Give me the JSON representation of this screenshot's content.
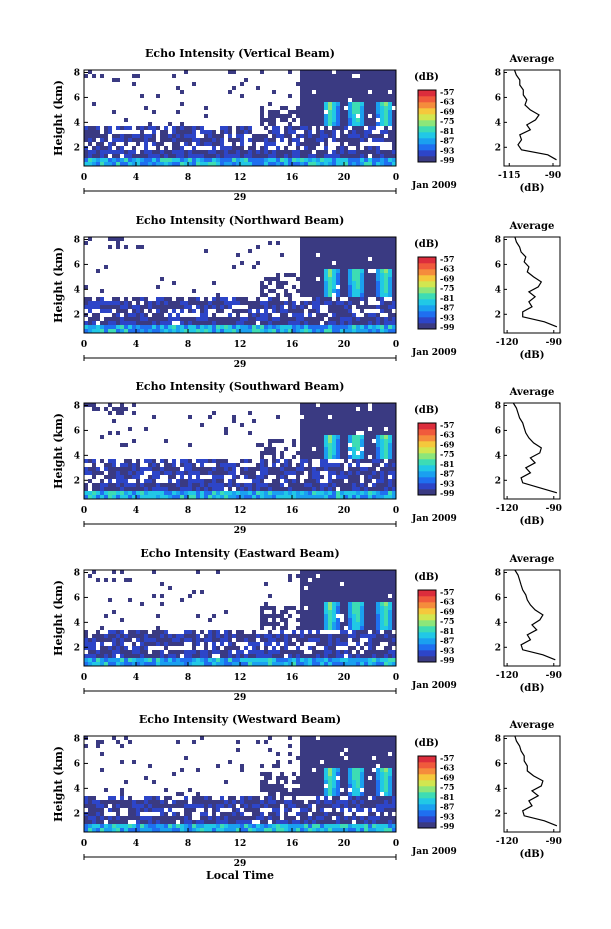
{
  "figure": {
    "x_axis_title": "Local Time",
    "date_label": "29",
    "month_year_label": "Jan 2009",
    "colorbar_unit": "(dB)",
    "average_title": "Average",
    "average_xlabel": "(dB)"
  },
  "colorbar": {
    "tick_labels": [
      "-57",
      "-63",
      "-69",
      "-75",
      "-81",
      "-87",
      "-93",
      "-99"
    ],
    "range": [
      -99,
      -57
    ],
    "colors": [
      "#3a3a82",
      "#2d45c8",
      "#1f6ff0",
      "#1aa0f0",
      "#21c8e6",
      "#3ddcb4",
      "#8ce67a",
      "#d2e650",
      "#f5c83c",
      "#f58c3c",
      "#f05a3c",
      "#dc2d3c"
    ]
  },
  "chart_data": [
    {
      "type": "heatmap",
      "title": "Echo Intensity (Vertical Beam)",
      "ylabel": "Height (km)",
      "x_ticks": [
        "0",
        "4",
        "8",
        "12",
        "16",
        "20",
        "0"
      ],
      "y_ticks": [
        "2",
        "4",
        "6",
        "8"
      ],
      "xlim": [
        0,
        24
      ],
      "ylim": [
        0.5,
        8.2
      ],
      "clutter_top_km": 3.8,
      "average": {
        "title": "Average",
        "x_ticks": [
          "-115",
          "-90"
        ],
        "xlim": [
          -118,
          -86
        ],
        "y_ticks": [
          "2",
          "4",
          "6",
          "8"
        ],
        "height_km": [
          1.0,
          1.4,
          1.8,
          2.2,
          2.6,
          3.0,
          3.4,
          3.8,
          4.2,
          4.6,
          5.0,
          5.4,
          5.8,
          6.2,
          6.6,
          7.0,
          7.4,
          7.8,
          8.2
        ],
        "db": [
          -88,
          -93,
          -108,
          -110,
          -108,
          -109,
          -103,
          -105,
          -100,
          -98,
          -103,
          -106,
          -105,
          -107,
          -107,
          -109,
          -109,
          -111,
          -112
        ]
      }
    },
    {
      "type": "heatmap",
      "title": "Echo Intensity (Northward Beam)",
      "ylabel": "Height (km)",
      "x_ticks": [
        "0",
        "4",
        "8",
        "12",
        "16",
        "20",
        "0"
      ],
      "y_ticks": [
        "2",
        "4",
        "6",
        "8"
      ],
      "xlim": [
        0,
        24
      ],
      "ylim": [
        0.5,
        8.2
      ],
      "clutter_top_km": 3.6,
      "average": {
        "title": "Average",
        "x_ticks": [
          "-120",
          "-90"
        ],
        "xlim": [
          -122,
          -86
        ],
        "y_ticks": [
          "2",
          "4",
          "6",
          "8"
        ],
        "height_km": [
          1.0,
          1.4,
          1.8,
          2.2,
          2.6,
          3.0,
          3.4,
          3.8,
          4.2,
          4.6,
          5.0,
          5.4,
          5.8,
          6.2,
          6.6,
          7.0,
          7.4,
          7.8,
          8.2
        ],
        "db": [
          -88,
          -96,
          -110,
          -110,
          -104,
          -106,
          -102,
          -106,
          -100,
          -98,
          -103,
          -107,
          -106,
          -109,
          -108,
          -111,
          -112,
          -114,
          -115
        ]
      }
    },
    {
      "type": "heatmap",
      "title": "Echo Intensity (Southward Beam)",
      "ylabel": "Height (km)",
      "x_ticks": [
        "0",
        "4",
        "8",
        "12",
        "16",
        "20",
        "0"
      ],
      "y_ticks": [
        "2",
        "4",
        "6",
        "8"
      ],
      "xlim": [
        0,
        24
      ],
      "ylim": [
        0.5,
        8.2
      ],
      "clutter_top_km": 3.8,
      "average": {
        "title": "Average",
        "x_ticks": [
          "-120",
          "-90"
        ],
        "xlim": [
          -122,
          -86
        ],
        "y_ticks": [
          "2",
          "4",
          "6",
          "8"
        ],
        "height_km": [
          1.0,
          1.4,
          1.8,
          2.2,
          2.6,
          3.0,
          3.4,
          3.8,
          4.2,
          4.6,
          5.0,
          5.4,
          5.8,
          6.2,
          6.6,
          7.0,
          7.4,
          7.8,
          8.2
        ],
        "db": [
          -88,
          -99,
          -110,
          -111,
          -105,
          -108,
          -102,
          -105,
          -99,
          -98,
          -103,
          -106,
          -108,
          -109,
          -110,
          -112,
          -113,
          -114,
          -116
        ]
      }
    },
    {
      "type": "heatmap",
      "title": "Echo Intensity (Eastward Beam)",
      "ylabel": "Height (km)",
      "x_ticks": [
        "0",
        "4",
        "8",
        "12",
        "16",
        "20",
        "0"
      ],
      "y_ticks": [
        "2",
        "4",
        "6",
        "8"
      ],
      "xlim": [
        0,
        24
      ],
      "ylim": [
        0.5,
        8.2
      ],
      "clutter_top_km": 3.7,
      "average": {
        "title": "Average",
        "x_ticks": [
          "-120",
          "-90"
        ],
        "xlim": [
          -122,
          -86
        ],
        "y_ticks": [
          "2",
          "4",
          "6",
          "8"
        ],
        "height_km": [
          1.0,
          1.4,
          1.8,
          2.2,
          2.6,
          3.0,
          3.4,
          3.8,
          4.2,
          4.6,
          5.0,
          5.4,
          5.8,
          6.2,
          6.6,
          7.0,
          7.4,
          7.8,
          8.2
        ],
        "db": [
          -89,
          -97,
          -110,
          -111,
          -105,
          -107,
          -101,
          -104,
          -99,
          -97,
          -102,
          -105,
          -107,
          -108,
          -110,
          -111,
          -112,
          -113,
          -115
        ]
      }
    },
    {
      "type": "heatmap",
      "title": "Echo Intensity (Westward Beam)",
      "ylabel": "Height (km)",
      "x_ticks": [
        "0",
        "4",
        "8",
        "12",
        "16",
        "20",
        "0"
      ],
      "y_ticks": [
        "2",
        "4",
        "6",
        "8"
      ],
      "xlim": [
        0,
        24
      ],
      "ylim": [
        0.5,
        8.2
      ],
      "clutter_top_km": 3.6,
      "average": {
        "title": "Average",
        "x_ticks": [
          "-120",
          "-90"
        ],
        "xlim": [
          -122,
          -86
        ],
        "y_ticks": [
          "2",
          "4",
          "6",
          "8"
        ],
        "height_km": [
          1.0,
          1.4,
          1.8,
          2.2,
          2.6,
          3.0,
          3.4,
          3.8,
          4.2,
          4.6,
          5.0,
          5.4,
          5.8,
          6.2,
          6.6,
          7.0,
          7.4,
          7.8,
          8.2
        ],
        "db": [
          -88,
          -96,
          -109,
          -110,
          -104,
          -106,
          -100,
          -104,
          -98,
          -97,
          -103,
          -107,
          -107,
          -109,
          -109,
          -111,
          -112,
          -114,
          -115
        ]
      }
    }
  ]
}
